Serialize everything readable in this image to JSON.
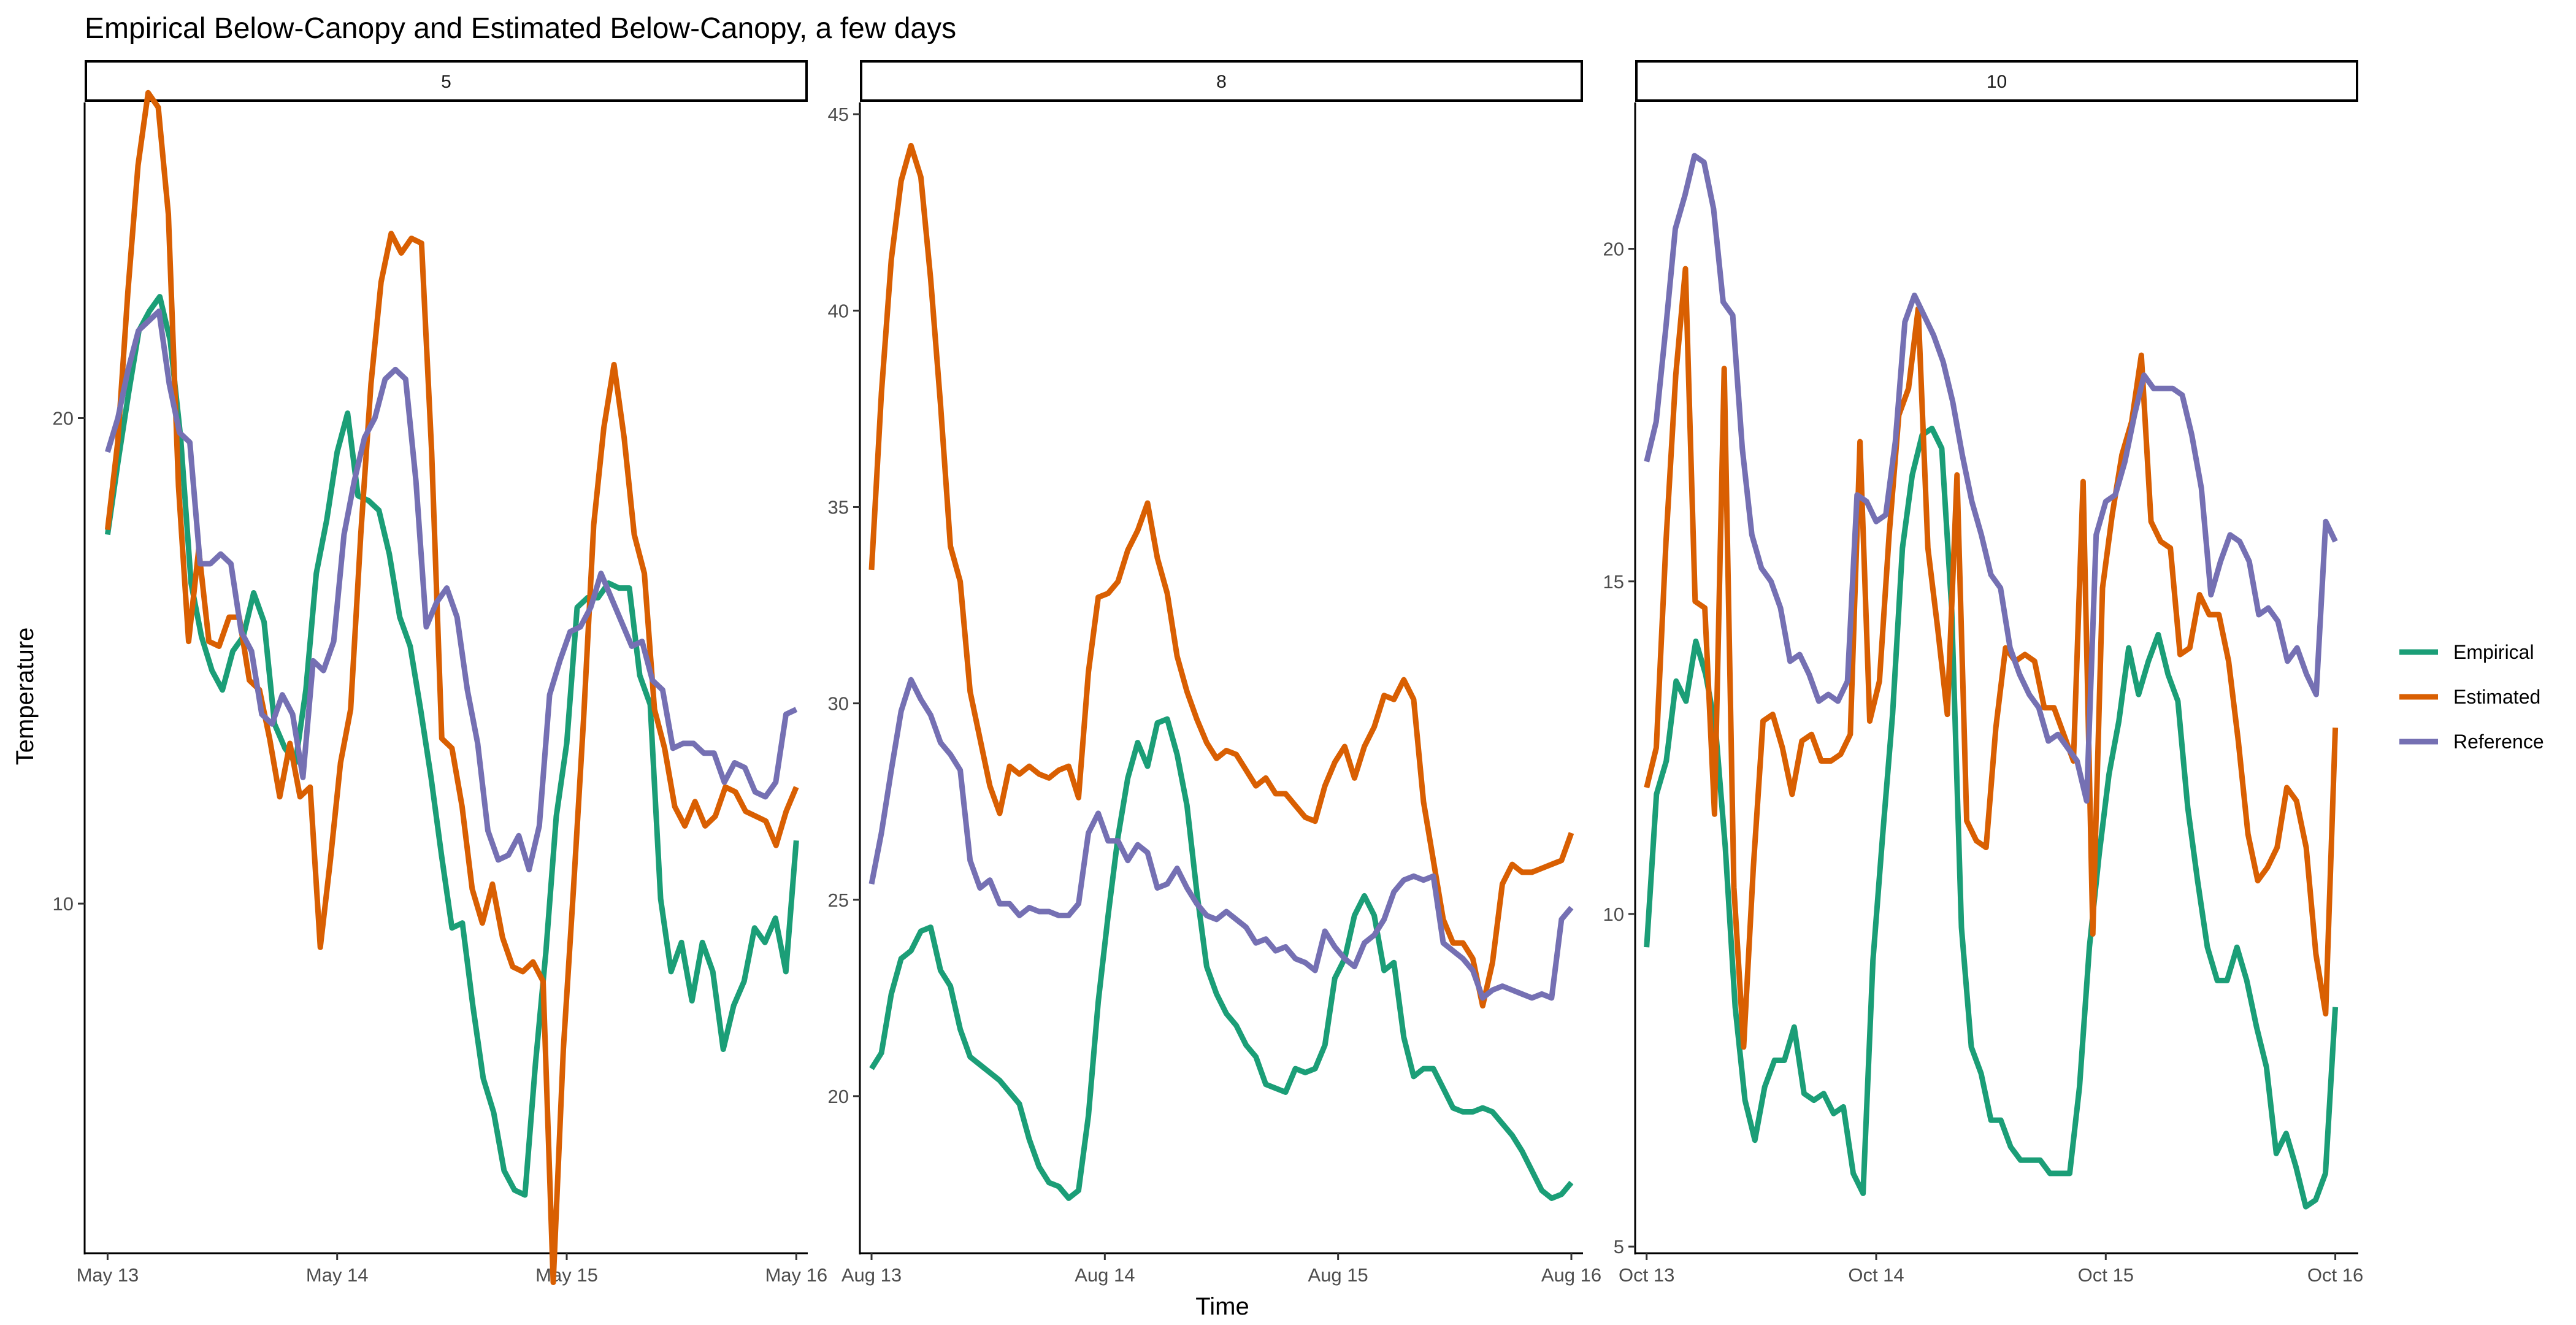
{
  "chart_data": {
    "type": "line",
    "title": "Empirical Below-Canopy and Estimated Below-Canopy, a few days",
    "xlabel": "Time",
    "ylabel": "Temperature",
    "legend": {
      "position": "right",
      "entries": [
        "Empirical",
        "Estimated",
        "Reference"
      ]
    },
    "colors": {
      "Empirical": "#1B9E77",
      "Estimated": "#D95F02",
      "Reference": "#7570B3"
    },
    "grid": false,
    "x_unit": "days",
    "facets": [
      {
        "strip": "5",
        "x_tick_labels": [
          "May 13",
          "May 14",
          "May 15",
          "May 16"
        ],
        "xlim": [
          -0.1,
          3.05
        ],
        "ylim": [
          2.8,
          26.5
        ],
        "y_ticks": [
          10,
          20
        ],
        "series": [
          {
            "name": "Empirical",
            "values": [
              17.6,
              19.1,
              20.5,
              21.8,
              22.2,
              22.5,
              21.6,
              19.6,
              16.6,
              15.5,
              14.8,
              14.4,
              15.2,
              15.5,
              16.4,
              15.8,
              13.7,
              13.2,
              12.9,
              14.4,
              16.8,
              17.9,
              19.3,
              20.1,
              18.4,
              18.3,
              18.1,
              17.2,
              15.9,
              15.3,
              14.0,
              12.6,
              11.0,
              9.5,
              9.6,
              7.9,
              6.4,
              5.7,
              4.5,
              4.1,
              4.0,
              6.7,
              9.0,
              11.8,
              13.3,
              16.1,
              16.3,
              16.3,
              16.6,
              16.5,
              16.5,
              14.7,
              14.1,
              10.1,
              8.6,
              9.2,
              8.0,
              9.2,
              8.6,
              7.0,
              7.9,
              8.4,
              9.5,
              9.2,
              9.7,
              8.6,
              11.3
            ]
          },
          {
            "name": "Estimated",
            "values": [
              17.7,
              19.5,
              22.6,
              25.2,
              26.7,
              26.4,
              24.2,
              18.6,
              15.4,
              17.3,
              15.4,
              15.3,
              15.9,
              15.9,
              14.6,
              14.4,
              13.4,
              12.2,
              13.3,
              12.2,
              12.4,
              9.1,
              10.9,
              12.9,
              14.0,
              17.6,
              20.7,
              22.8,
              23.8,
              23.4,
              23.7,
              23.6,
              19.3,
              13.4,
              13.2,
              12.0,
              10.3,
              9.6,
              10.4,
              9.3,
              8.7,
              8.6,
              8.8,
              8.4,
              2.2,
              7.0,
              10.3,
              13.8,
              17.8,
              19.8,
              21.1,
              19.6,
              17.6,
              16.8,
              14.0,
              13.2,
              12.0,
              11.6,
              12.1,
              11.6,
              11.8,
              12.4,
              12.3,
              11.9,
              11.8,
              11.7,
              11.2,
              11.9,
              12.4
            ]
          },
          {
            "name": "Reference",
            "values": [
              19.3,
              20.0,
              21.0,
              21.8,
              22.0,
              22.2,
              20.7,
              19.7,
              19.5,
              17.0,
              17.0,
              17.2,
              17.0,
              15.6,
              15.2,
              13.9,
              13.7,
              14.3,
              13.9,
              12.6,
              15.0,
              14.8,
              15.4,
              17.6,
              18.7,
              19.6,
              20.0,
              20.8,
              21.0,
              20.8,
              18.7,
              15.7,
              16.2,
              16.5,
              15.9,
              14.4,
              13.3,
              11.5,
              10.9,
              11.0,
              11.4,
              10.7,
              11.6,
              14.3,
              15.0,
              15.6,
              15.7,
              16.1,
              16.8,
              16.3,
              15.8,
              15.3,
              15.4,
              14.6,
              14.4,
              13.2,
              13.3,
              13.3,
              13.1,
              13.1,
              12.5,
              12.9,
              12.8,
              12.3,
              12.2,
              12.5,
              13.9,
              14.0
            ]
          }
        ]
      },
      {
        "strip": "8",
        "x_tick_labels": [
          "Aug 13",
          "Aug 14",
          "Aug 15",
          "Aug 16"
        ],
        "xlim": [
          -0.05,
          3.05
        ],
        "ylim": [
          16.0,
          45.3
        ],
        "y_ticks": [
          20,
          25,
          30,
          35,
          40,
          45
        ],
        "series": [
          {
            "name": "Empirical",
            "values": [
              20.7,
              21.1,
              22.6,
              23.5,
              23.7,
              24.2,
              24.3,
              23.2,
              22.8,
              21.7,
              21.0,
              20.8,
              20.6,
              20.4,
              20.1,
              19.8,
              18.9,
              18.2,
              17.8,
              17.7,
              17.4,
              17.6,
              19.5,
              22.4,
              24.6,
              26.6,
              28.1,
              29.0,
              28.4,
              29.5,
              29.6,
              28.7,
              27.4,
              25.2,
              23.3,
              22.6,
              22.1,
              21.8,
              21.3,
              21.0,
              20.3,
              20.2,
              20.1,
              20.7,
              20.6,
              20.7,
              21.3,
              23.0,
              23.5,
              24.6,
              25.1,
              24.6,
              23.2,
              23.4,
              21.5,
              20.5,
              20.7,
              20.7,
              20.2,
              19.7,
              19.6,
              19.6,
              19.7,
              19.6,
              19.3,
              19.0,
              18.6,
              18.1,
              17.6,
              17.4,
              17.5,
              17.8
            ]
          },
          {
            "name": "Estimated",
            "values": [
              33.4,
              37.9,
              41.3,
              43.3,
              44.2,
              43.4,
              40.8,
              37.6,
              34.0,
              33.1,
              30.3,
              29.1,
              27.9,
              27.2,
              28.4,
              28.2,
              28.4,
              28.2,
              28.1,
              28.3,
              28.4,
              27.6,
              30.8,
              32.7,
              32.8,
              33.1,
              33.9,
              34.4,
              35.1,
              33.7,
              32.8,
              31.2,
              30.3,
              29.6,
              29.0,
              28.6,
              28.8,
              28.7,
              28.3,
              27.9,
              28.1,
              27.7,
              27.7,
              27.4,
              27.1,
              27.0,
              27.9,
              28.5,
              28.9,
              28.1,
              28.9,
              29.4,
              30.2,
              30.1,
              30.6,
              30.1,
              27.5,
              26.0,
              24.5,
              23.9,
              23.9,
              23.5,
              22.3,
              23.4,
              25.4,
              25.9,
              25.7,
              25.7,
              25.8,
              25.9,
              26.0,
              26.7
            ]
          },
          {
            "name": "Reference",
            "values": [
              25.4,
              26.7,
              28.3,
              29.8,
              30.6,
              30.1,
              29.7,
              29.0,
              28.7,
              28.3,
              26.0,
              25.3,
              25.5,
              24.9,
              24.9,
              24.6,
              24.8,
              24.7,
              24.7,
              24.6,
              24.6,
              24.9,
              26.7,
              27.2,
              26.5,
              26.5,
              26.0,
              26.4,
              26.2,
              25.3,
              25.4,
              25.8,
              25.3,
              24.9,
              24.6,
              24.5,
              24.7,
              24.5,
              24.3,
              23.9,
              24.0,
              23.7,
              23.8,
              23.5,
              23.4,
              23.2,
              24.2,
              23.8,
              23.5,
              23.3,
              23.9,
              24.1,
              24.5,
              25.2,
              25.5,
              25.6,
              25.5,
              25.6,
              23.9,
              23.7,
              23.5,
              23.2,
              22.5,
              22.7,
              22.8,
              22.7,
              22.6,
              22.5,
              22.6,
              22.5,
              24.5,
              24.8
            ]
          }
        ]
      },
      {
        "strip": "10",
        "x_tick_labels": [
          "Oct 13",
          "Oct 14",
          "Oct 15",
          "Oct 16"
        ],
        "xlim": [
          -0.05,
          3.1
        ],
        "ylim": [
          4.9,
          22.2
        ],
        "y_ticks": [
          5,
          10,
          15,
          20
        ],
        "series": [
          {
            "name": "Empirical",
            "values": [
              9.5,
              11.8,
              12.3,
              13.5,
              13.2,
              14.1,
              13.6,
              12.8,
              11.0,
              8.6,
              7.2,
              6.6,
              7.4,
              7.8,
              7.8,
              8.3,
              7.3,
              7.2,
              7.3,
              7.0,
              7.1,
              6.1,
              5.8,
              9.3,
              11.2,
              13.0,
              15.5,
              16.6,
              17.2,
              17.3,
              17.0,
              14.6,
              9.8,
              8.0,
              7.6,
              6.9,
              6.9,
              6.5,
              6.3,
              6.3,
              6.3,
              6.1,
              6.1,
              6.1,
              7.4,
              9.5,
              10.9,
              12.1,
              12.9,
              14.0,
              13.3,
              13.8,
              14.2,
              13.6,
              13.2,
              11.6,
              10.5,
              9.5,
              9.0,
              9.0,
              9.5,
              9.0,
              8.3,
              7.7,
              6.4,
              6.7,
              6.2,
              5.6,
              5.7,
              6.1,
              8.6
            ]
          },
          {
            "name": "Estimated",
            "values": [
              11.9,
              12.5,
              15.6,
              18.1,
              19.7,
              14.7,
              14.6,
              11.5,
              18.2,
              10.4,
              8.0,
              10.7,
              12.9,
              13.0,
              12.5,
              11.8,
              12.6,
              12.7,
              12.3,
              12.3,
              12.4,
              12.7,
              17.1,
              12.9,
              13.5,
              15.7,
              17.5,
              17.9,
              19.1,
              15.5,
              14.3,
              13.0,
              16.6,
              11.4,
              11.1,
              11.0,
              12.8,
              14.0,
              13.8,
              13.9,
              13.8,
              13.1,
              13.1,
              12.7,
              12.3,
              16.5,
              9.7,
              14.9,
              16.0,
              16.9,
              17.4,
              18.4,
              15.9,
              15.6,
              15.5,
              13.9,
              14.0,
              14.8,
              14.5,
              14.5,
              13.8,
              12.6,
              11.2,
              10.5,
              10.7,
              11.0,
              11.9,
              11.7,
              11.0,
              9.4,
              8.5,
              12.8
            ]
          },
          {
            "name": "Reference",
            "values": [
              16.8,
              17.4,
              18.8,
              20.3,
              20.8,
              21.4,
              21.3,
              20.6,
              19.2,
              19.0,
              17.0,
              15.7,
              15.2,
              15.0,
              14.6,
              13.8,
              13.9,
              13.6,
              13.2,
              13.3,
              13.2,
              13.5,
              16.3,
              16.2,
              15.9,
              16.0,
              17.1,
              18.9,
              19.3,
              19.0,
              18.7,
              18.3,
              17.7,
              16.9,
              16.2,
              15.7,
              15.1,
              14.9,
              14.0,
              13.6,
              13.3,
              13.1,
              12.6,
              12.7,
              12.5,
              12.3,
              11.7,
              15.7,
              16.2,
              16.3,
              16.8,
              17.5,
              18.1,
              17.9,
              17.9,
              17.9,
              17.8,
              17.2,
              16.4,
              14.8,
              15.3,
              15.7,
              15.6,
              15.3,
              14.5,
              14.6,
              14.4,
              13.8,
              14.0,
              13.6,
              13.3,
              15.9,
              15.6
            ]
          }
        ]
      }
    ]
  }
}
